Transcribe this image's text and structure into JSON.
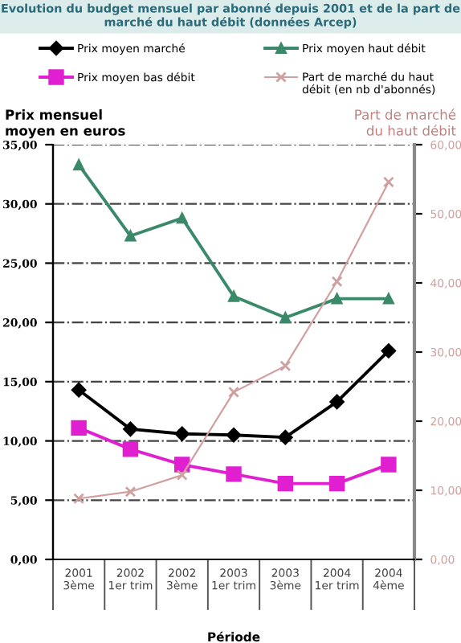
{
  "chart_data": {
    "type": "line",
    "title": "Evolution du budget mensuel par abonné depuis 2001 et de la part de marché du haut débit (données Arcep)",
    "categories": [
      "2001\n3ème",
      "2002\n1er trim",
      "2002\n3ème",
      "2003\n1er trim",
      "2003\n3ème",
      "2004\n1er trim",
      "2004\n4ème"
    ],
    "series": [
      {
        "name": "Prix moyen marché",
        "color": "#000000",
        "marker": "diamond",
        "values": [
          14.3,
          11.0,
          10.6,
          10.5,
          10.3,
          13.3,
          17.6
        ]
      },
      {
        "name": "Prix moyen haut débit",
        "color": "#3a8a6a",
        "marker": "triangle",
        "values": [
          33.3,
          27.3,
          28.8,
          22.2,
          20.4,
          22.0,
          22.0
        ]
      },
      {
        "name": "Prix moyen bas débit",
        "color": "#e020d0",
        "marker": "square",
        "values": [
          11.1,
          9.3,
          8.0,
          7.2,
          6.4,
          6.4,
          8.0
        ]
      },
      {
        "name": "Part de marché du haut débit (en nb d'abonnés)",
        "color": "#d0a0a0",
        "marker": "cross",
        "axis": "y2",
        "values": [
          8.8,
          9.8,
          12.2,
          24.2,
          28.0,
          40.2,
          54.6
        ]
      }
    ],
    "xlabel": "Période",
    "ylabel": "Prix mensuel\nmoyen en euros",
    "y2label": "Part de marché\ndu haut débit",
    "ylim": [
      0,
      35
    ],
    "yticks": [
      {
        "value": 0,
        "label": "0,00"
      },
      {
        "value": 5,
        "label": "5,00"
      },
      {
        "value": 10,
        "label": "10,00"
      },
      {
        "value": 15,
        "label": "15,00"
      },
      {
        "value": 20,
        "label": "20,00"
      },
      {
        "value": 25,
        "label": "25,00"
      },
      {
        "value": 30,
        "label": "30,00"
      },
      {
        "value": 35,
        "label": "35,00"
      }
    ],
    "y2lim": [
      0,
      60
    ],
    "y2ticks": [
      {
        "value": 0,
        "label": "0,00"
      },
      {
        "value": 10,
        "label": "10,00"
      },
      {
        "value": 20,
        "label": "20,00"
      },
      {
        "value": 30,
        "label": "30,00"
      },
      {
        "value": 40,
        "label": "40,00"
      },
      {
        "value": 50,
        "label": "50,00"
      },
      {
        "value": 60,
        "label": "60,00"
      }
    ],
    "grid": "y",
    "legend": "top",
    "line_style": "solid"
  }
}
